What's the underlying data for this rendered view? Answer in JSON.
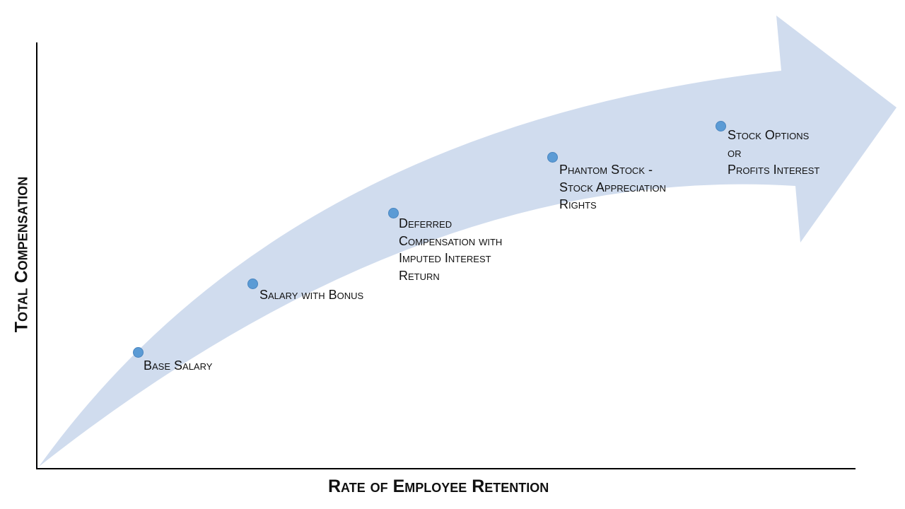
{
  "axes": {
    "x_title": "Rate of Employee Retention",
    "y_title": "Total Compensation"
  },
  "colors": {
    "arrow": "#d0dcee",
    "marker": "#5b9bd5",
    "axis": "#000000"
  },
  "stages": [
    {
      "lines": [
        "Base Salary"
      ]
    },
    {
      "lines": [
        "Salary with Bonus"
      ]
    },
    {
      "lines": [
        "Deferred",
        "Compensation with",
        "Imputed Interest",
        "Return"
      ]
    },
    {
      "lines": [
        "Phantom Stock -",
        "Stock Appreciation",
        "Rights"
      ]
    },
    {
      "lines": [
        "Stock Options",
        "or",
        "Profits Interest"
      ]
    }
  ]
}
